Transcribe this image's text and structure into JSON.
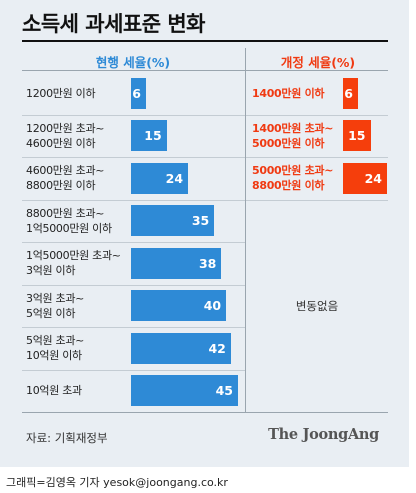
{
  "chart_data": {
    "type": "bar",
    "title": "소득세 과세표준 변화",
    "xlabel": "",
    "ylabel": "",
    "ylim": [
      0,
      45
    ],
    "grid": false,
    "series_headers": {
      "current": "현행 세율(%)",
      "revised": "개정 세율(%)"
    },
    "current": [
      {
        "bracket": "1200만원 이하",
        "rate": 6
      },
      {
        "bracket": "1200만원 초과~\n4600만원 이하",
        "rate": 15
      },
      {
        "bracket": "4600만원 초과~\n8800만원 이하",
        "rate": 24
      },
      {
        "bracket": "8800만원 초과~\n1억5000만원 이하",
        "rate": 35
      },
      {
        "bracket": "1억5000만원 초과~\n3억원 이하",
        "rate": 38
      },
      {
        "bracket": "3억원 초과~\n5억원 이하",
        "rate": 40
      },
      {
        "bracket": "5억원 초과~\n10억원 이하",
        "rate": 42
      },
      {
        "bracket": "10억원 초과",
        "rate": 45
      }
    ],
    "revised": [
      {
        "bracket": "1400만원 이하",
        "rate": 6
      },
      {
        "bracket": "1400만원 초과~\n5000만원 이하",
        "rate": 15
      },
      {
        "bracket": "5000만원 초과~\n8800만원 이하",
        "rate": 24
      }
    ],
    "no_change_label": "변동없음"
  },
  "colors": {
    "current_bar": "#2e8ad6",
    "revised_bar": "#f53e0c",
    "panel_bg": "#e9eef3"
  },
  "footer": {
    "source": "자료: 기획재정부",
    "brand": "The JoongAng",
    "credit": "그래픽=김영옥 기자 yesok@joongang.co.kr"
  }
}
